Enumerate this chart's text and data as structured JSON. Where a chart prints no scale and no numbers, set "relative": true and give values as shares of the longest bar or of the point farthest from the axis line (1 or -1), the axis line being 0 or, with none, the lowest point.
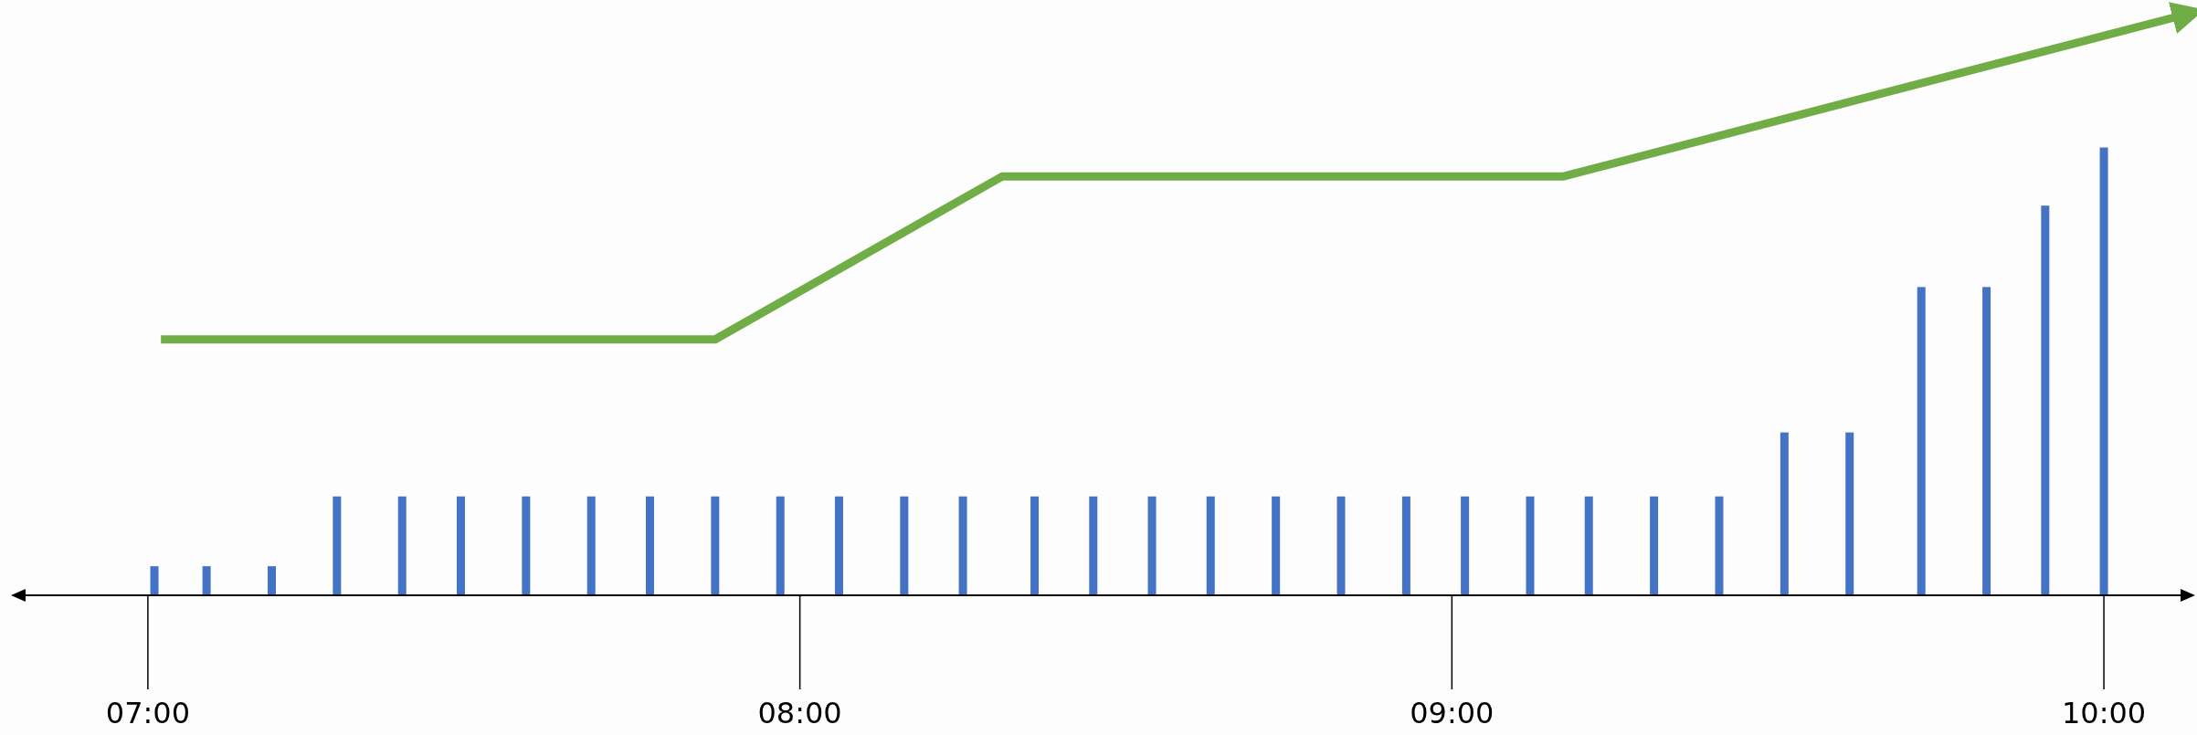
{
  "chart_data": {
    "type": "bar",
    "relative": true,
    "x": [
      7.01,
      7.09,
      7.19,
      7.29,
      7.39,
      7.48,
      7.58,
      7.68,
      7.77,
      7.87,
      7.97,
      8.06,
      8.16,
      8.25,
      8.36,
      8.45,
      8.54,
      8.63,
      8.73,
      8.83,
      8.93,
      9.02,
      9.12,
      9.21,
      9.31,
      9.41,
      9.51,
      9.61,
      9.72,
      9.82,
      9.91,
      10.0
    ],
    "xlim": [
      6.79,
      10.14
    ],
    "xticks": [
      {
        "value": 7,
        "label": "07:00"
      },
      {
        "value": 8,
        "label": "08:00"
      },
      {
        "value": 9,
        "label": "09:00"
      },
      {
        "value": 10,
        "label": "10:00"
      }
    ],
    "series": [
      {
        "color": "#4472c4",
        "values": [
          0.05,
          0.05,
          0.05,
          0.17,
          0.17,
          0.17,
          0.17,
          0.17,
          0.17,
          0.17,
          0.17,
          0.17,
          0.17,
          0.17,
          0.17,
          0.17,
          0.17,
          0.17,
          0.17,
          0.17,
          0.17,
          0.17,
          0.17,
          0.17,
          0.17,
          0.17,
          0.28,
          0.28,
          0.53,
          0.53,
          0.67,
          0.77
        ]
      },
      {
        "type": "line",
        "color": "#70ad47",
        "x": [
          7.02,
          7.87,
          8.31,
          9.17,
          10.13
        ],
        "values": [
          0.44,
          0.44,
          0.72,
          0.72,
          1
        ]
      }
    ]
  }
}
